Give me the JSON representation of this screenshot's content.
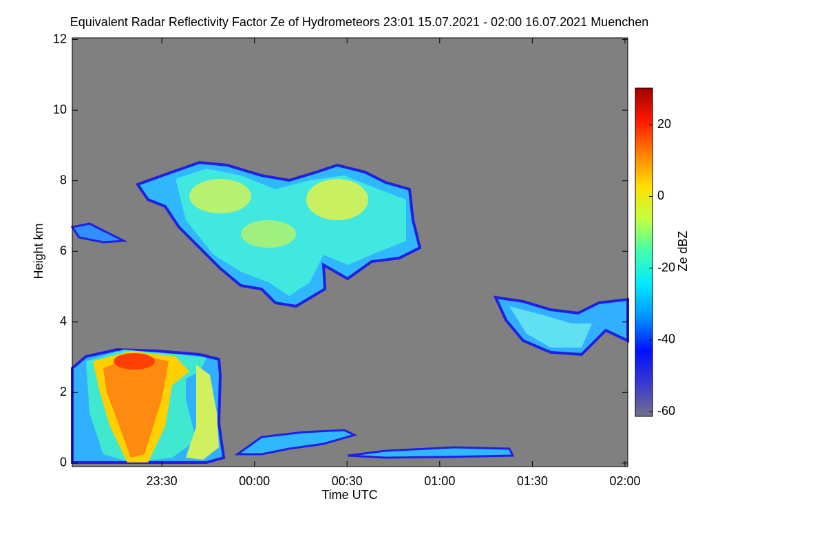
{
  "chart_data": {
    "type": "heatmap",
    "title": "Equivalent Radar Reflectivity Factor Ze of Hydrometeors   23:01 15.07.2021 - 02:00 16.07.2021 Muenchen",
    "xlabel": "Time UTC",
    "ylabel": "Height km",
    "xlim": [
      23.0167,
      26.015
    ],
    "xticks": [
      {
        "value": 23.5,
        "label": "23:30"
      },
      {
        "value": 24,
        "label": "00:00"
      },
      {
        "value": 24.5,
        "label": "00:30"
      },
      {
        "value": 25,
        "label": "01:00"
      },
      {
        "value": 25.5,
        "label": "01:30"
      },
      {
        "value": 26,
        "label": "02:00"
      }
    ],
    "ylim": [
      -0.1,
      12.05
    ],
    "yticks": [
      0,
      2,
      4,
      6,
      8,
      10,
      12
    ],
    "colorbar": {
      "label": "Ze dBZ",
      "clim": [
        -61.3,
        30.2
      ],
      "ticks": [
        -60,
        -40,
        -20,
        0,
        20
      ],
      "colors": [
        "#70708a",
        "#3a3ad0",
        "#0010ff",
        "#0090ff",
        "#00e8ff",
        "#40ffb0",
        "#c0ff40",
        "#ffe000",
        "#ff8000",
        "#ff1800",
        "#a00000"
      ]
    },
    "background": "#808080"
  }
}
